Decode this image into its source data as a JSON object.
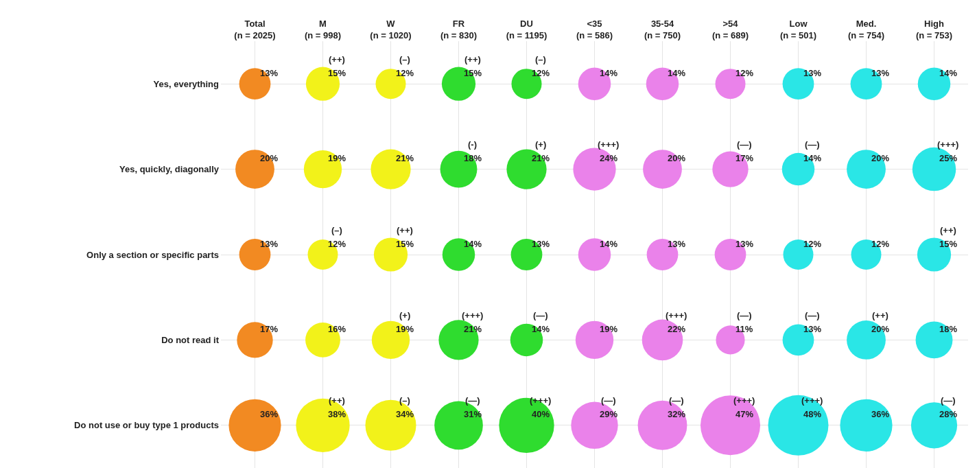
{
  "chart_data": {
    "type": "other",
    "categories": [
      "Total\n(n = 2025)",
      "M\n(n = 998)",
      "W\n(n = 1020)",
      "FR\n(n = 830)",
      "DU\n(n = 1195)",
      "<35\n(n = 586)",
      "35-54\n(n = 750)",
      ">54\n(n = 689)",
      "Low\n(n = 501)",
      "Med.\n(n = 754)",
      "High\n(n = 753)"
    ],
    "series": [
      {
        "name": "Yes, everything",
        "colors": [
          "#f28a22",
          "#f2f21a",
          "#f2f21a",
          "#2fdc2f",
          "#2fdc2f",
          "#ea82ea",
          "#ea82ea",
          "#ea82ea",
          "#2ae6e6",
          "#2ae6e6",
          "#2ae6e6"
        ],
        "values": [
          13,
          15,
          12,
          15,
          12,
          14,
          14,
          12,
          13,
          13,
          14
        ],
        "value_labels": [
          "13%",
          "15%",
          "12%",
          "15%",
          "12%",
          "14%",
          "14%",
          "12%",
          "13%",
          "13%",
          "14%"
        ]
      },
      {
        "name": "Yes, quickly, diagonally",
        "colors": [
          "#f28a22",
          "#f2f21a",
          "#f2f21a",
          "#2fdc2f",
          "#2fdc2f",
          "#ea82ea",
          "#ea82ea",
          "#ea82ea",
          "#2ae6e6",
          "#2ae6e6",
          "#2ae6e6"
        ],
        "values": [
          20,
          19,
          21,
          18,
          21,
          24,
          20,
          17,
          14,
          20,
          25
        ],
        "value_labels": [
          "20%",
          "19%",
          "21%",
          "18%",
          "21%",
          "24%",
          "20%",
          "17%",
          "14%",
          "20%",
          "25%"
        ]
      },
      {
        "name": "Only a section or specific parts",
        "colors": [
          "#f28a22",
          "#f2f21a",
          "#f2f21a",
          "#2fdc2f",
          "#2fdc2f",
          "#ea82ea",
          "#ea82ea",
          "#ea82ea",
          "#2ae6e6",
          "#2ae6e6",
          "#2ae6e6"
        ],
        "values": [
          13,
          12,
          15,
          14,
          13,
          14,
          13,
          13,
          12,
          12,
          15
        ],
        "value_labels": [
          "13%",
          "12%",
          "15%",
          "14%",
          "13%",
          "14%",
          "13%",
          "13%",
          "12%",
          "12%",
          "15%"
        ]
      },
      {
        "name": "Do not read it",
        "colors": [
          "#f28a22",
          "#f2f21a",
          "#f2f21a",
          "#2fdc2f",
          "#2fdc2f",
          "#ea82ea",
          "#ea82ea",
          "#ea82ea",
          "#2ae6e6",
          "#2ae6e6",
          "#2ae6e6"
        ],
        "values": [
          17,
          16,
          19,
          21,
          14,
          19,
          22,
          11,
          13,
          20,
          18
        ],
        "value_labels": [
          "17%",
          "16%",
          "19%",
          "21%",
          "14%",
          "19%",
          "22%",
          "11%",
          "13%",
          "20%",
          "18%"
        ]
      },
      {
        "name": "Do not use or buy type 1 products",
        "colors": [
          "#f28a22",
          "#f2f21a",
          "#f2f21a",
          "#2fdc2f",
          "#2fdc2f",
          "#ea82ea",
          "#ea82ea",
          "#ea82ea",
          "#2ae6e6",
          "#2ae6e6",
          "#2ae6e6"
        ],
        "values": [
          36,
          38,
          34,
          31,
          40,
          29,
          32,
          47,
          48,
          36,
          28
        ],
        "value_labels": [
          "36%",
          "38%",
          "34%",
          "31%",
          "40%",
          "29%",
          "32%",
          "47%",
          "48%",
          "36%",
          "28%"
        ]
      }
    ],
    "annotations": [
      {
        "text": "(++)",
        "x": "M\n(n = 998)",
        "y": "Yes, everything"
      },
      {
        "text": "(–)",
        "x": "W\n(n = 1020)",
        "y": "Yes, everything"
      },
      {
        "text": "(++)",
        "x": "FR\n(n = 830)",
        "y": "Yes, everything"
      },
      {
        "text": "(–)",
        "x": "DU\n(n = 1195)",
        "y": "Yes, everything"
      },
      {
        "text": "(-)",
        "x": "FR\n(n = 830)",
        "y": "Yes, quickly, diagonally"
      },
      {
        "text": "(+)",
        "x": "DU\n(n = 1195)",
        "y": "Yes, quickly, diagonally"
      },
      {
        "text": "(+++)",
        "x": "<35\n(n = 586)",
        "y": "Yes, quickly, diagonally"
      },
      {
        "text": "(—)",
        "x": ">54\n(n = 689)",
        "y": "Yes, quickly, diagonally"
      },
      {
        "text": "(—)",
        "x": "Low\n(n = 501)",
        "y": "Yes, quickly, diagonally"
      },
      {
        "text": "(+++)",
        "x": "High\n(n = 753)",
        "y": "Yes, quickly, diagonally"
      },
      {
        "text": "(–)",
        "x": "M\n(n = 998)",
        "y": "Only a section or specific parts"
      },
      {
        "text": "(++)",
        "x": "W\n(n = 1020)",
        "y": "Only a section or specific parts"
      },
      {
        "text": "(++)",
        "x": "High\n(n = 753)",
        "y": "Only a section or specific parts"
      },
      {
        "text": "(+)",
        "x": "W\n(n = 1020)",
        "y": "Do not read it"
      },
      {
        "text": "(+++)",
        "x": "FR\n(n = 830)",
        "y": "Do not read it"
      },
      {
        "text": "(—)",
        "x": "DU\n(n = 1195)",
        "y": "Do not read it"
      },
      {
        "text": "(+++)",
        "x": "35-54\n(n = 750)",
        "y": "Do not read it"
      },
      {
        "text": "(—)",
        "x": ">54\n(n = 689)",
        "y": "Do not read it"
      },
      {
        "text": "(—)",
        "x": "Low\n(n = 501)",
        "y": "Do not read it"
      },
      {
        "text": "(++)",
        "x": "Med.\n(n = 754)",
        "y": "Do not read it"
      },
      {
        "text": "(++)",
        "x": "M\n(n = 998)",
        "y": "Do not use or buy type 1 products"
      },
      {
        "text": "(–)",
        "x": "W\n(n = 1020)",
        "y": "Do not use or buy type 1 products"
      },
      {
        "text": "(—)",
        "x": "FR\n(n = 830)",
        "y": "Do not use or buy type 1 products"
      },
      {
        "text": "(+++)",
        "x": "DU\n(n = 1195)",
        "y": "Do not use or buy type 1 products"
      },
      {
        "text": "(—)",
        "x": "<35\n(n = 586)",
        "y": "Do not use or buy type 1 products"
      },
      {
        "text": "(—)",
        "x": "35-54\n(n = 750)",
        "y": "Do not use or buy type 1 products"
      },
      {
        "text": "(+++)",
        "x": ">54\n(n = 689)",
        "y": "Do not use or buy type 1 products"
      },
      {
        "text": "(+++)",
        "x": "Low\n(n = 501)",
        "y": "Do not use or buy type 1 products"
      },
      {
        "text": "(—)",
        "x": "High\n(n = 753)",
        "y": "Do not use or buy type 1 products"
      }
    ]
  }
}
